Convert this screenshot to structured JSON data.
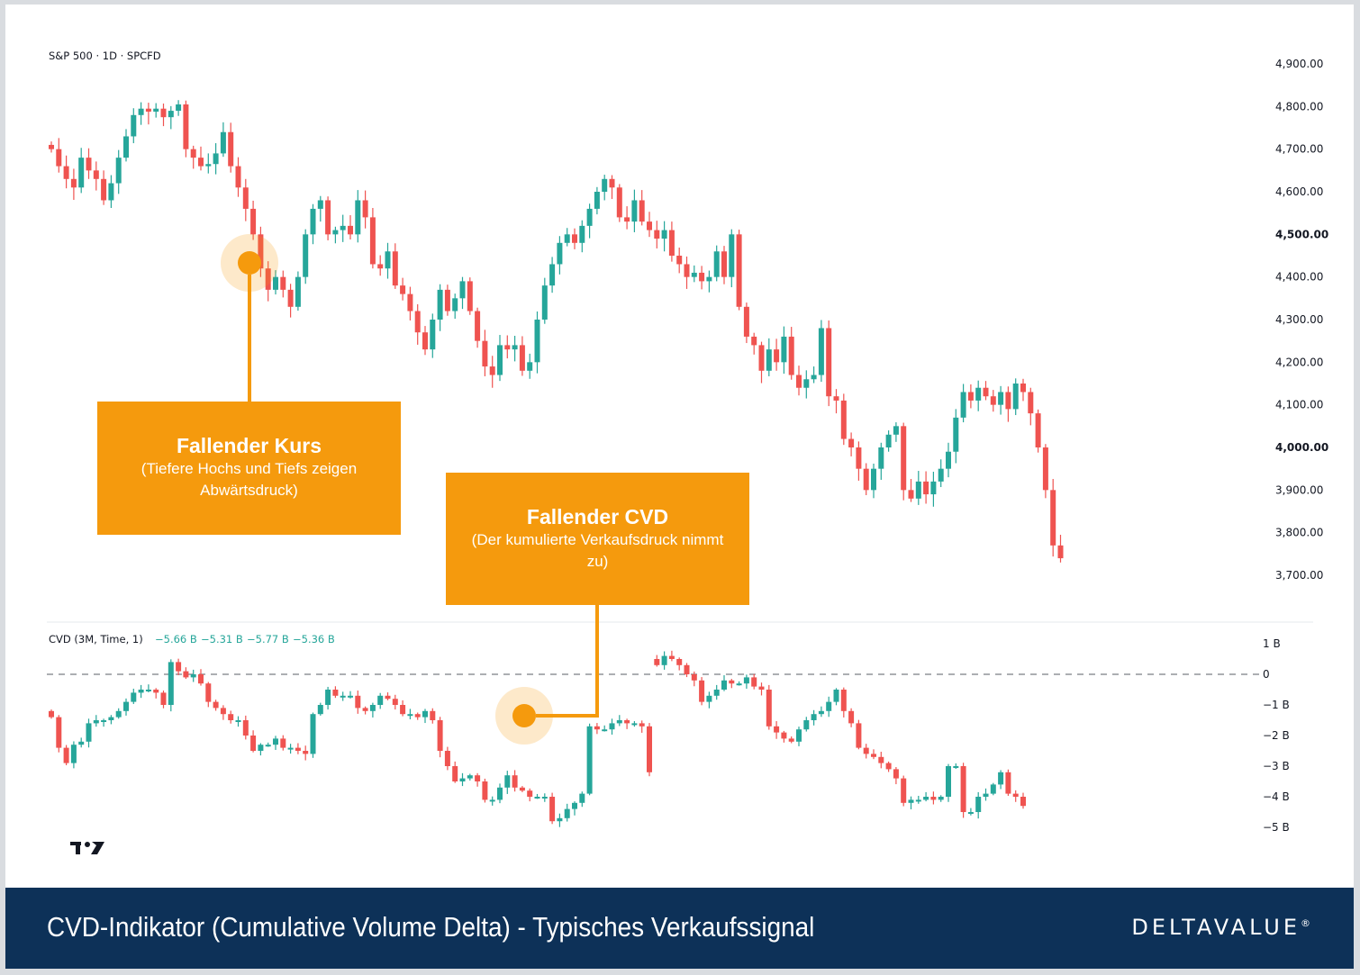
{
  "chart_data": [
    {
      "type": "candlestick",
      "title": "S&P 500 · 1D · SPCFD",
      "yaxis_ticks": [
        "4,900.00",
        "4,800.00",
        "4,700.00",
        "4,600.00",
        "4,500.00",
        "4,400.00",
        "4,300.00",
        "4,200.00",
        "4,100.00",
        "4,000.00",
        "3,900.00",
        "3,800.00",
        "3,700.00"
      ],
      "ylim": [
        3680,
        4920
      ],
      "colors": {
        "up": "#26a69a",
        "down": "#ef5350"
      },
      "closes": [
        4700,
        4660,
        4630,
        4610,
        4680,
        4650,
        4630,
        4580,
        4620,
        4680,
        4730,
        4780,
        4795,
        4788,
        4795,
        4775,
        4790,
        4805,
        4700,
        4680,
        4660,
        4665,
        4690,
        4740,
        4660,
        4610,
        4560,
        4500,
        4420,
        4370,
        4400,
        4370,
        4330,
        4400,
        4500,
        4560,
        4580,
        4500,
        4510,
        4520,
        4500,
        4580,
        4540,
        4430,
        4420,
        4460,
        4380,
        4360,
        4320,
        4270,
        4230,
        4300,
        4370,
        4320,
        4350,
        4390,
        4320,
        4250,
        4190,
        4170,
        4240,
        4230,
        4240,
        4180,
        4200,
        4300,
        4380,
        4430,
        4480,
        4500,
        4480,
        4520,
        4560,
        4600,
        4630,
        4610,
        4540,
        4530,
        4580,
        4530,
        4510,
        4490,
        4510,
        4450,
        4430,
        4400,
        4410,
        4390,
        4400,
        4460,
        4400,
        4500,
        4330,
        4260,
        4240,
        4180,
        4230,
        4200,
        4260,
        4170,
        4140,
        4160,
        4170,
        4280,
        4120,
        4110,
        4020,
        4000,
        3950,
        3900,
        3950,
        4000,
        4030,
        4050,
        3900,
        3880,
        3920,
        3890,
        3920,
        3950,
        3990,
        4070,
        4130,
        4110,
        4140,
        4120,
        4100,
        4130,
        4090,
        4150,
        4130,
        4080,
        4000,
        3900,
        3770,
        3740
      ]
    },
    {
      "type": "candlestick",
      "legend_label": "CVD (3M, Time, 1)",
      "legend_values": [
        "−5.66 B",
        "−5.31 B",
        "−5.77 B",
        "−5.36 B"
      ],
      "yaxis_ticks": [
        "1 B",
        "0",
        "−1 B",
        "−2 B",
        "−3 B",
        "−4 B",
        "−5 B"
      ],
      "ylim": [
        -5.3,
        1.3
      ],
      "zero_line": "dashed",
      "segments": [
        [
          -1.4,
          -2.4,
          -2.9,
          -2.3,
          -2.2,
          -1.6,
          -1.5,
          -1.5,
          -1.4,
          -1.2,
          -0.9,
          -0.6,
          -0.5,
          -0.5,
          -0.6,
          -1.0,
          0.4,
          0.1,
          -0.1,
          0.0,
          -0.3,
          -0.9,
          -1.1,
          -1.3,
          -1.5,
          -1.5,
          -2.0,
          -2.5,
          -2.3,
          -2.3,
          -2.1,
          -2.4,
          -2.4,
          -2.5,
          -2.6,
          -1.3,
          -1.0,
          -0.5,
          -0.7,
          -0.7,
          -0.7,
          -1.1,
          -1.2,
          -1.0,
          -0.7,
          -0.8,
          -1.0,
          -1.3,
          -1.3,
          -1.4,
          -1.2,
          -1.5,
          -2.5,
          -3.0,
          -3.5,
          -3.4,
          -3.3,
          -3.5,
          -4.1,
          -4.1,
          -3.7,
          -3.3,
          -3.7,
          -3.8,
          -4.0,
          -4.0,
          -4.0,
          -4.8,
          -4.7,
          -4.4,
          -4.2,
          -3.9,
          -1.7,
          -1.8,
          -1.8,
          -1.6,
          -1.5,
          -1.6,
          -1.6,
          -1.7,
          -3.2
        ],
        [
          0.3,
          0.6,
          0.5,
          0.3,
          0.0,
          -0.2,
          -0.9,
          -0.7,
          -0.5,
          -0.2,
          -0.3,
          -0.3,
          -0.1,
          -0.4,
          -0.5,
          -1.7,
          -1.9,
          -2.1,
          -2.2,
          -1.8,
          -1.5,
          -1.3,
          -1.2,
          -0.9,
          -0.5,
          -1.2,
          -1.6,
          -2.4,
          -2.6,
          -2.7,
          -2.9,
          -3.1,
          -3.4,
          -4.2,
          -4.1,
          -4.1,
          -4.0,
          -4.1,
          -4.0,
          -3.0,
          -3.0,
          -4.5,
          -4.5,
          -4.0,
          -3.9,
          -3.6,
          -3.2,
          -3.9,
          -4.0,
          -4.3
        ]
      ]
    }
  ],
  "annotations": {
    "price": {
      "title": "Fallender Kurs",
      "subtitle": "(Tiefere Hochs und Tiefs zeigen Abwärtsdruck)"
    },
    "cvd": {
      "title": "Fallender CVD",
      "subtitle": "(Der kumulierte Verkaufsdruck nimmt zu)"
    }
  },
  "footer": {
    "title": "CVD-Indikator (Cumulative Volume Delta) - Typisches Verkaufssignal",
    "brand": "DELTAVALUE",
    "brand_mark": "®"
  }
}
